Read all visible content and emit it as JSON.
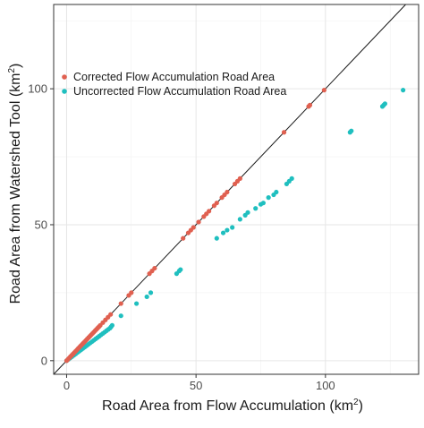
{
  "chart_data": {
    "type": "scatter",
    "title": "",
    "xlabel": "Road Area from Flow Accumulation (km²)",
    "xlabel_main": "Road Area from Flow Accumulation (km",
    "xlabel_sup": "2",
    "xlabel_end": ")",
    "ylabel": "Road Area from Watershed Tool (km²)",
    "ylabel_main": "Road Area from Watershed Tool (km",
    "ylabel_sup": "2",
    "ylabel_end": ")",
    "xlim": [
      -5,
      136
    ],
    "ylim": [
      -5,
      131
    ],
    "xticks": [
      0,
      50,
      100
    ],
    "yticks": [
      0,
      50,
      100
    ],
    "grid": true,
    "legend_position": "top-left",
    "reference_line": "y = x",
    "series": [
      {
        "name": "Corrected Flow Accumulation Road Area",
        "color": "#e06050",
        "points": [
          [
            0,
            0
          ],
          [
            0.5,
            0.5
          ],
          [
            1,
            1
          ],
          [
            1.5,
            1.5
          ],
          [
            2,
            2
          ],
          [
            2.5,
            2.5
          ],
          [
            3,
            3
          ],
          [
            3.5,
            3.5
          ],
          [
            4,
            4
          ],
          [
            4.5,
            4.5
          ],
          [
            5,
            5
          ],
          [
            5.5,
            5.5
          ],
          [
            6,
            6
          ],
          [
            6.5,
            6.5
          ],
          [
            7,
            7
          ],
          [
            7.5,
            7.5
          ],
          [
            8,
            8
          ],
          [
            8.5,
            8.5
          ],
          [
            9,
            9
          ],
          [
            9.5,
            9.5
          ],
          [
            10,
            10
          ],
          [
            10.5,
            10.5
          ],
          [
            11,
            11
          ],
          [
            11.5,
            11.5
          ],
          [
            12,
            12
          ],
          [
            12.5,
            12.5
          ],
          [
            13,
            13
          ],
          [
            14,
            14
          ],
          [
            15,
            15
          ],
          [
            16,
            16
          ],
          [
            17,
            17
          ],
          [
            21,
            21
          ],
          [
            24,
            24
          ],
          [
            25,
            25
          ],
          [
            32,
            32
          ],
          [
            33,
            33
          ],
          [
            34,
            34
          ],
          [
            45,
            45
          ],
          [
            47,
            47
          ],
          [
            48,
            48
          ],
          [
            49,
            49
          ],
          [
            51,
            51
          ],
          [
            53,
            53
          ],
          [
            54,
            54
          ],
          [
            55,
            55
          ],
          [
            57,
            57
          ],
          [
            58,
            58
          ],
          [
            60,
            60
          ],
          [
            61,
            61
          ],
          [
            62,
            62
          ],
          [
            65,
            65
          ],
          [
            66,
            66
          ],
          [
            67,
            67
          ],
          [
            84,
            84
          ],
          [
            93.5,
            93.5
          ],
          [
            94,
            94
          ],
          [
            99.5,
            99.5
          ]
        ]
      },
      {
        "name": "Uncorrected Flow Accumulation Road Area",
        "color": "#1fbfbf",
        "points": [
          [
            0,
            0
          ],
          [
            0.7,
            0.5
          ],
          [
            1.4,
            1
          ],
          [
            2.1,
            1.5
          ],
          [
            2.8,
            2
          ],
          [
            3.5,
            2.5
          ],
          [
            4.2,
            3
          ],
          [
            4.9,
            3.5
          ],
          [
            5.6,
            4
          ],
          [
            6.3,
            4.5
          ],
          [
            7,
            5
          ],
          [
            7.7,
            5.5
          ],
          [
            8.4,
            6
          ],
          [
            9.1,
            6.5
          ],
          [
            9.8,
            7
          ],
          [
            10.5,
            7.5
          ],
          [
            11.2,
            8
          ],
          [
            11.9,
            8.5
          ],
          [
            12.6,
            9
          ],
          [
            13.3,
            9.5
          ],
          [
            14,
            10
          ],
          [
            14.7,
            10.5
          ],
          [
            15.4,
            11
          ],
          [
            16.1,
            11.5
          ],
          [
            16.8,
            12
          ],
          [
            17.2,
            12.5
          ],
          [
            17.6,
            13
          ],
          [
            21,
            16.5
          ],
          [
            27,
            21
          ],
          [
            31,
            23.5
          ],
          [
            32.5,
            25
          ],
          [
            42.5,
            32
          ],
          [
            43.5,
            33
          ],
          [
            44,
            33.5
          ],
          [
            58,
            45
          ],
          [
            60.5,
            47
          ],
          [
            62,
            48
          ],
          [
            64,
            49
          ],
          [
            67,
            52
          ],
          [
            69,
            53.5
          ],
          [
            70,
            54.5
          ],
          [
            73,
            56
          ],
          [
            75,
            57.5
          ],
          [
            76,
            58
          ],
          [
            78,
            60
          ],
          [
            80,
            61
          ],
          [
            81,
            62
          ],
          [
            85,
            65
          ],
          [
            86,
            66
          ],
          [
            87,
            67
          ],
          [
            109.5,
            84
          ],
          [
            110,
            84.5
          ],
          [
            122,
            93.5
          ],
          [
            122.5,
            94
          ],
          [
            123,
            94.5
          ],
          [
            130,
            99.5
          ]
        ]
      }
    ]
  }
}
